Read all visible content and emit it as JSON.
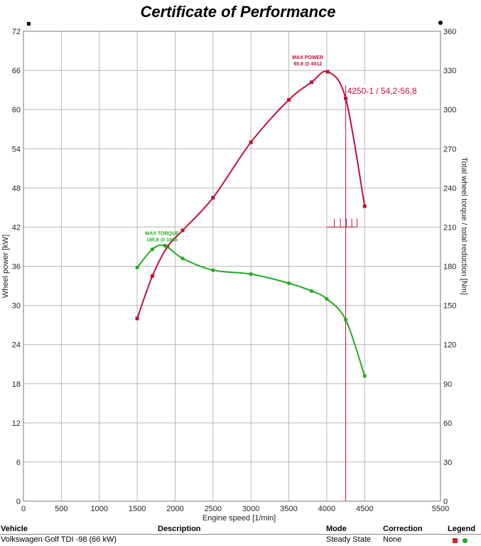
{
  "chart_data": {
    "type": "line",
    "title": "Certificate of Performance",
    "xlabel": "Engine speed [1/min]",
    "ylabel_left": "Wheel power [kW]",
    "ylabel_right": "Total wheel torque / total reduction [Nm]",
    "xlim": [
      0,
      5500
    ],
    "ylim_left": [
      0,
      72
    ],
    "ylim_right": [
      0,
      360
    ],
    "x_ticks": [
      "0",
      "500",
      "1000",
      "1500",
      "2000",
      "2500",
      "3000",
      "3500",
      "4000",
      "4500",
      "5500"
    ],
    "y_left_ticks": [
      "0",
      "6",
      "12",
      "18",
      "24",
      "30",
      "36",
      "42",
      "48",
      "54",
      "60",
      "66",
      "72"
    ],
    "y_right_ticks": [
      "0",
      "30",
      "60",
      "90",
      "120",
      "150",
      "180",
      "210",
      "240",
      "270",
      "300",
      "330",
      "360"
    ],
    "grid": true,
    "series": [
      {
        "axis": "left",
        "color": "#c0103a",
        "x": [
          1500,
          1700,
          1900,
          2100,
          2500,
          3000,
          3500,
          3800,
          4012,
          4250,
          4500
        ],
        "y": [
          28.0,
          34.5,
          39.0,
          41.5,
          46.5,
          55.0,
          61.5,
          64.2,
          65.8,
          61.7,
          45.2
        ]
      },
      {
        "axis": "right",
        "color": "#22aa22",
        "x": [
          1500,
          1700,
          1865,
          2100,
          2500,
          3000,
          3500,
          3800,
          4000,
          4250,
          4500
        ],
        "y": [
          179,
          193,
          195.8,
          186,
          177,
          174,
          167,
          161,
          155,
          139,
          96
        ]
      }
    ],
    "annotations": {
      "max_power": {
        "line1": "MAX POWER",
        "line2": "65.8 @ 4012",
        "x": 4012,
        "y": 65.8
      },
      "max_torque": {
        "line1": "MAX TORQUE",
        "line2": "195.8 @ 1865",
        "x": 1865,
        "y": 195.8
      },
      "cursor": {
        "x": 4250,
        "label": "4250-1 / 54,2-56,8"
      },
      "marker_ticks": {
        "y": 42,
        "x_start": 4000,
        "x_end": 4400,
        "ticks": [
          4100,
          4180,
          4260,
          4330,
          4400
        ]
      }
    }
  },
  "table": {
    "headers": {
      "vehicle": "Vehicle",
      "description": "Description",
      "mode": "Mode",
      "correction": "Correction",
      "legend": "Legend"
    },
    "row": {
      "vehicle": "Volkswagen Golf TDI -98 (66 kW)",
      "description": "",
      "mode": "Steady State",
      "correction": "None"
    },
    "legend_colors": [
      "#cc2222",
      "#22aa22"
    ]
  }
}
